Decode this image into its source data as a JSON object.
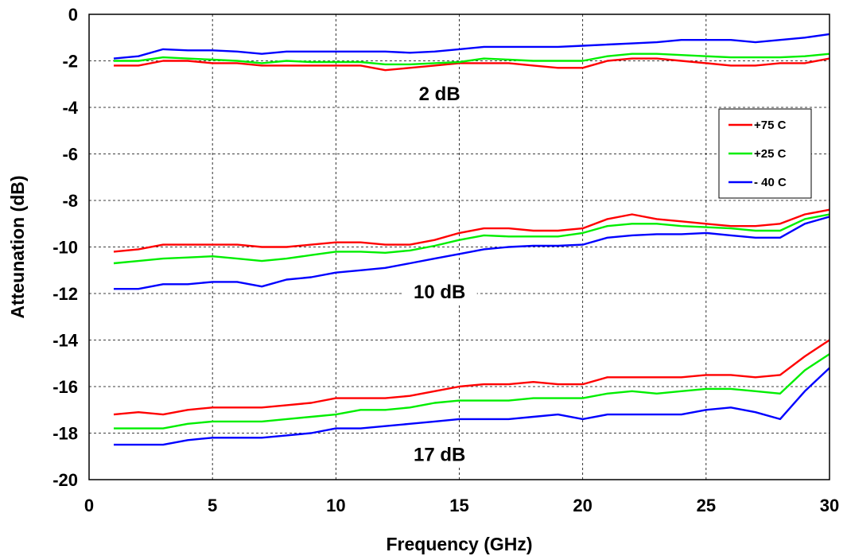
{
  "chart_data": {
    "type": "line",
    "title": "",
    "xlabel": "Frequency (GHz)",
    "ylabel": "Atteunation (dB)",
    "xlim": [
      0,
      30
    ],
    "ylim": [
      -20,
      0
    ],
    "x_ticks": [
      "0",
      "5",
      "10",
      "15",
      "20",
      "25",
      "30"
    ],
    "y_ticks": [
      "0",
      "-2",
      "-4",
      "-6",
      "-8",
      "-10",
      "-12",
      "-14",
      "-16",
      "-18",
      "-20"
    ],
    "grid": true,
    "legend_position": "right",
    "legend": [
      "+75 C",
      "+25 C",
      "- 40 C"
    ],
    "colors": {
      "+75 C": "#ff0000",
      "+25 C": "#00ee00",
      "- 40 C": "#0000ff"
    },
    "annotations": [
      {
        "text": "2 dB",
        "x": 14.2,
        "y": -3.7
      },
      {
        "text": "10 dB",
        "x": 14.2,
        "y": -12.2
      },
      {
        "text": "17 dB",
        "x": 14.2,
        "y": -19.2
      }
    ],
    "x": [
      1,
      2,
      3,
      4,
      5,
      6,
      7,
      8,
      9,
      10,
      11,
      12,
      13,
      14,
      15,
      16,
      17,
      18,
      19,
      20,
      21,
      22,
      23,
      24,
      25,
      26,
      27,
      28,
      29,
      30
    ],
    "groups": [
      {
        "name": "2 dB",
        "series": [
          {
            "name": "+75 C",
            "values": [
              -2.2,
              -2.2,
              -2.0,
              -2.0,
              -2.1,
              -2.1,
              -2.2,
              -2.2,
              -2.2,
              -2.2,
              -2.2,
              -2.4,
              -2.3,
              -2.2,
              -2.1,
              -2.1,
              -2.1,
              -2.2,
              -2.3,
              -2.3,
              -2.0,
              -1.9,
              -1.9,
              -2.0,
              -2.1,
              -2.2,
              -2.2,
              -2.1,
              -2.1,
              -1.9
            ]
          },
          {
            "name": "+25 C",
            "values": [
              -2.0,
              -2.0,
              -1.85,
              -1.9,
              -1.95,
              -2.0,
              -2.1,
              -2.0,
              -2.05,
              -2.05,
              -2.05,
              -2.15,
              -2.15,
              -2.1,
              -2.05,
              -1.9,
              -1.95,
              -2.0,
              -2.0,
              -2.0,
              -1.8,
              -1.7,
              -1.7,
              -1.75,
              -1.8,
              -1.85,
              -1.85,
              -1.85,
              -1.8,
              -1.7
            ]
          },
          {
            "name": "- 40 C",
            "values": [
              -1.9,
              -1.8,
              -1.5,
              -1.55,
              -1.55,
              -1.6,
              -1.7,
              -1.6,
              -1.6,
              -1.6,
              -1.6,
              -1.6,
              -1.65,
              -1.6,
              -1.5,
              -1.4,
              -1.4,
              -1.4,
              -1.4,
              -1.35,
              -1.3,
              -1.25,
              -1.2,
              -1.1,
              -1.1,
              -1.1,
              -1.2,
              -1.1,
              -1.0,
              -0.85
            ]
          }
        ]
      },
      {
        "name": "10 dB",
        "series": [
          {
            "name": "+75 C",
            "values": [
              -10.2,
              -10.1,
              -9.9,
              -9.9,
              -9.9,
              -9.9,
              -10.0,
              -10.0,
              -9.9,
              -9.8,
              -9.8,
              -9.9,
              -9.9,
              -9.7,
              -9.4,
              -9.2,
              -9.2,
              -9.3,
              -9.3,
              -9.2,
              -8.8,
              -8.6,
              -8.8,
              -8.9,
              -9.0,
              -9.1,
              -9.1,
              -9.0,
              -8.6,
              -8.4
            ]
          },
          {
            "name": "+25 C",
            "values": [
              -10.7,
              -10.6,
              -10.5,
              -10.45,
              -10.4,
              -10.5,
              -10.6,
              -10.5,
              -10.35,
              -10.2,
              -10.2,
              -10.25,
              -10.15,
              -9.95,
              -9.7,
              -9.5,
              -9.55,
              -9.55,
              -9.55,
              -9.4,
              -9.1,
              -9.0,
              -9.0,
              -9.1,
              -9.15,
              -9.2,
              -9.3,
              -9.3,
              -8.8,
              -8.6
            ]
          },
          {
            "name": "- 40 C",
            "values": [
              -11.8,
              -11.8,
              -11.6,
              -11.6,
              -11.5,
              -11.5,
              -11.7,
              -11.4,
              -11.3,
              -11.1,
              -11.0,
              -10.9,
              -10.7,
              -10.5,
              -10.3,
              -10.1,
              -10.0,
              -9.95,
              -9.95,
              -9.9,
              -9.6,
              -9.5,
              -9.45,
              -9.45,
              -9.4,
              -9.5,
              -9.6,
              -9.6,
              -9.0,
              -8.7
            ]
          }
        ]
      },
      {
        "name": "17 dB",
        "series": [
          {
            "name": "+75 C",
            "values": [
              -17.2,
              -17.1,
              -17.2,
              -17.0,
              -16.9,
              -16.9,
              -16.9,
              -16.8,
              -16.7,
              -16.5,
              -16.5,
              -16.5,
              -16.4,
              -16.2,
              -16.0,
              -15.9,
              -15.9,
              -15.8,
              -15.9,
              -15.9,
              -15.6,
              -15.6,
              -15.6,
              -15.6,
              -15.5,
              -15.5,
              -15.6,
              -15.5,
              -14.7,
              -14.0
            ]
          },
          {
            "name": "+25 C",
            "values": [
              -17.8,
              -17.8,
              -17.8,
              -17.6,
              -17.5,
              -17.5,
              -17.5,
              -17.4,
              -17.3,
              -17.2,
              -17.0,
              -17.0,
              -16.9,
              -16.7,
              -16.6,
              -16.6,
              -16.6,
              -16.5,
              -16.5,
              -16.5,
              -16.3,
              -16.2,
              -16.3,
              -16.2,
              -16.1,
              -16.1,
              -16.2,
              -16.3,
              -15.3,
              -14.6
            ]
          },
          {
            "name": "- 40 C",
            "values": [
              -18.5,
              -18.5,
              -18.5,
              -18.3,
              -18.2,
              -18.2,
              -18.2,
              -18.1,
              -18.0,
              -17.8,
              -17.8,
              -17.7,
              -17.6,
              -17.5,
              -17.4,
              -17.4,
              -17.4,
              -17.3,
              -17.2,
              -17.4,
              -17.2,
              -17.2,
              -17.2,
              -17.2,
              -17.0,
              -16.9,
              -17.1,
              -17.4,
              -16.2,
              -15.2
            ]
          }
        ]
      }
    ]
  }
}
